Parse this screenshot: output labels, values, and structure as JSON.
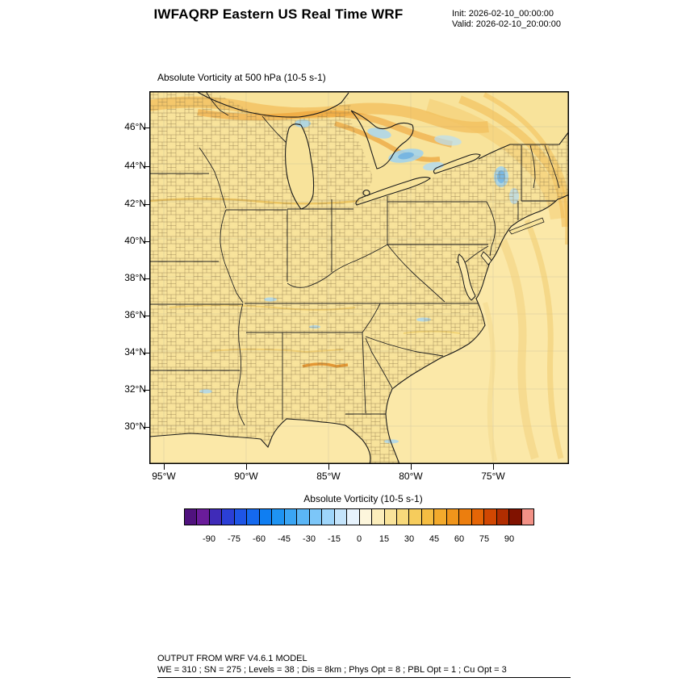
{
  "header": {
    "title": "IWFAQRP Eastern US Real Time WRF",
    "init_label": "Init: 2026-02-10_00:00:00",
    "valid_label": "Valid: 2026-02-10_20:00:00"
  },
  "plot": {
    "subtitle": "Absolute Vorticity at 500 hPa   (10-5 s-1)",
    "lat_labels": [
      "46°N",
      "44°N",
      "42°N",
      "40°N",
      "38°N",
      "36°N",
      "34°N",
      "32°N",
      "30°N"
    ],
    "lon_labels": [
      "95°W",
      "90°W",
      "85°W",
      "80°W",
      "75°W"
    ]
  },
  "colorbar": {
    "title": "Absolute Vorticity  (10-5 s-1)",
    "tick_labels": [
      "-90",
      "-75",
      "-60",
      "-45",
      "-30",
      "-15",
      "0",
      "15",
      "30",
      "45",
      "60",
      "75",
      "90"
    ],
    "colors": [
      "#50127E",
      "#6A1C9A",
      "#3F2BB8",
      "#2B3FD6",
      "#1E55E6",
      "#1569EE",
      "#0F7EF2",
      "#1E93F2",
      "#3AA5F4",
      "#5BB6F6",
      "#7CC6F8",
      "#9ED5FA",
      "#C4E4FB",
      "#E7F3FD",
      "#FDF6DC",
      "#FBEDBB",
      "#F9E39A",
      "#F8D97B",
      "#F6CC5C",
      "#F5BD42",
      "#F3AA2C",
      "#F0951B",
      "#EC7E0E",
      "#E56506",
      "#D14702",
      "#B12D00",
      "#801200",
      "#F29186"
    ]
  },
  "footer": {
    "line1": "OUTPUT FROM WRF V4.6.1 MODEL",
    "line2": "WE = 310 ; SN = 275 ; Levels = 38 ; Dis = 8km ; Phys Opt = 8 ; PBL Opt = 1 ; Cu Opt = 3"
  },
  "colors": {
    "field_yellow": "#F8E39B",
    "ocean_yellow": "#FBE8A8",
    "positive_vorticity_orange": "#F0A431",
    "negative_vorticity_blue": "#9FD2F0"
  }
}
